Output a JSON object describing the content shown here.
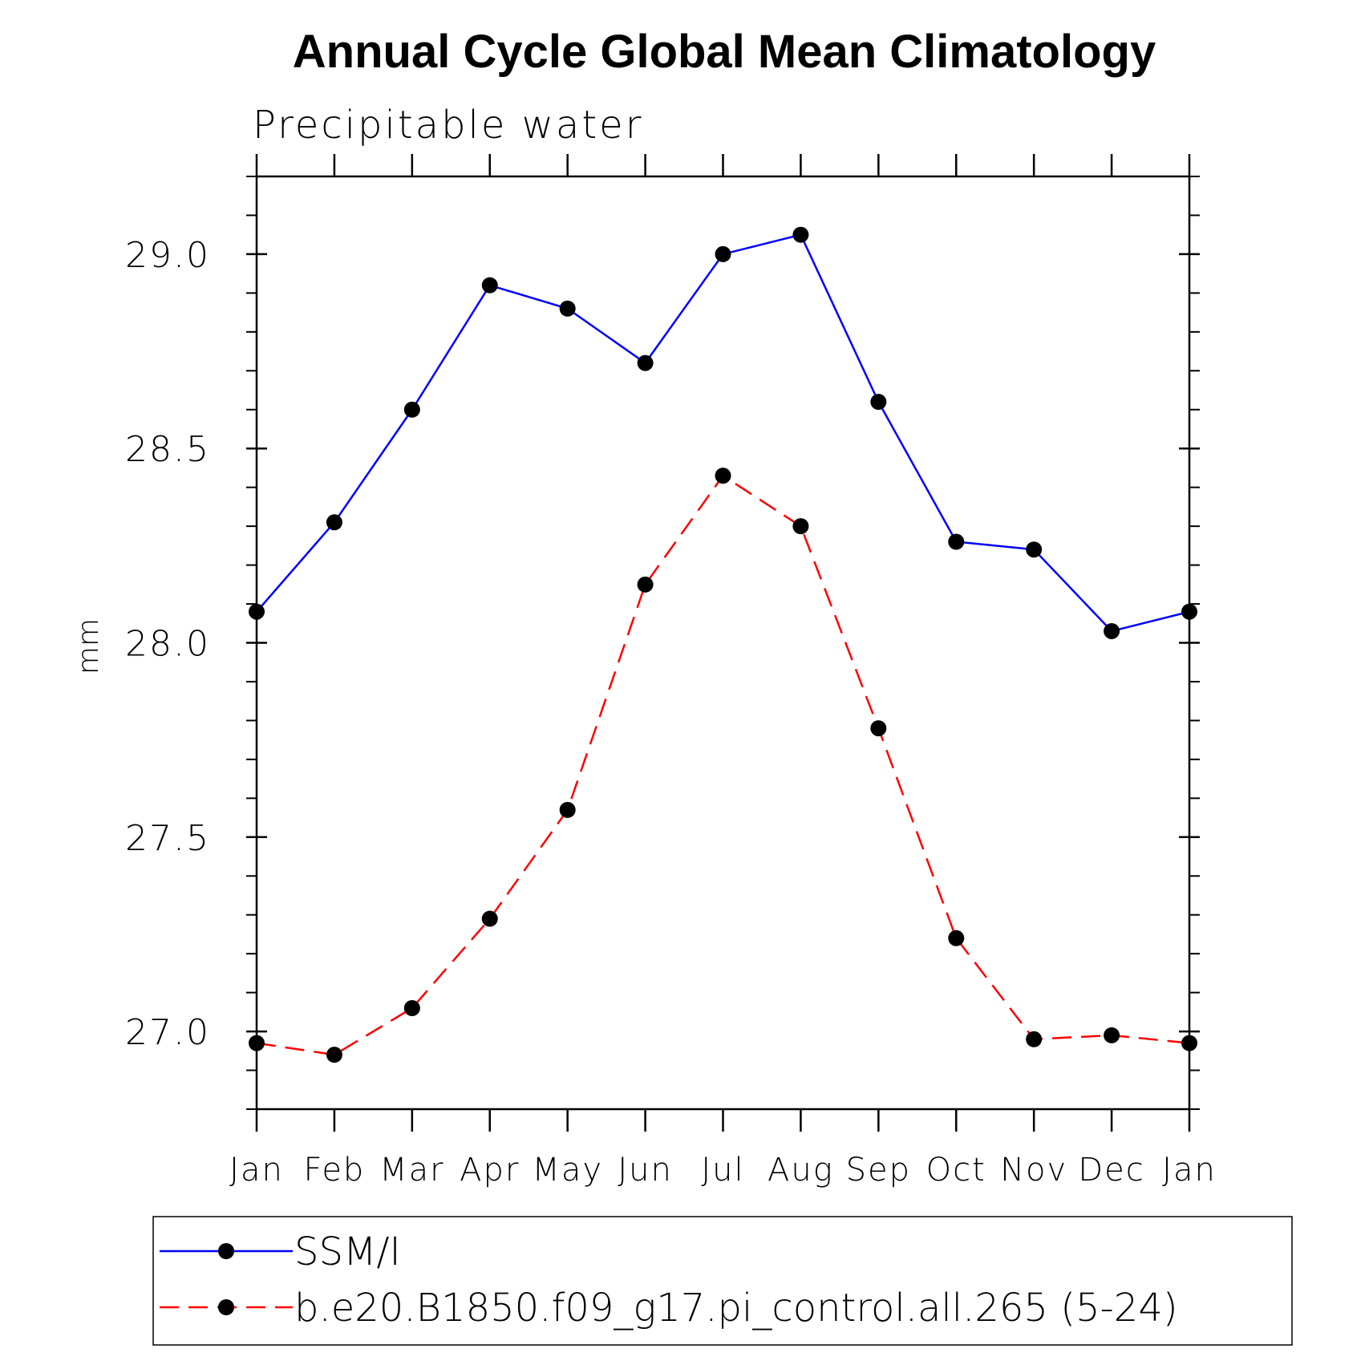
{
  "chart_data": {
    "type": "line",
    "title": "Annual Cycle Global Mean Climatology",
    "subtitle": "Precipitable water",
    "ylabel": "mm",
    "xlabel": "",
    "categories": [
      "Jan",
      "Feb",
      "Mar",
      "Apr",
      "May",
      "Jun",
      "Jul",
      "Aug",
      "Sep",
      "Oct",
      "Nov",
      "Dec",
      "Jan"
    ],
    "ylim": [
      26.8,
      29.2
    ],
    "yticks": [
      "27.0",
      "27.5",
      "28.0",
      "28.5",
      "29.0"
    ],
    "series": [
      {
        "name": "SSM/I",
        "color": "#0000ff",
        "dash": "solid",
        "values": [
          28.08,
          28.31,
          28.6,
          28.92,
          28.86,
          28.72,
          29.0,
          29.05,
          28.62,
          28.26,
          28.24,
          28.03,
          28.08
        ]
      },
      {
        "name": "b.e20.B1850.f09_g17.pi_control.all.265 (5-24)",
        "color": "#ff0000",
        "dash": "dashed",
        "values": [
          26.97,
          26.94,
          27.06,
          27.29,
          27.57,
          28.15,
          28.43,
          28.3,
          27.78,
          27.24,
          26.98,
          26.99,
          26.97
        ]
      }
    ],
    "legend_position": "bottom",
    "grid": false
  }
}
